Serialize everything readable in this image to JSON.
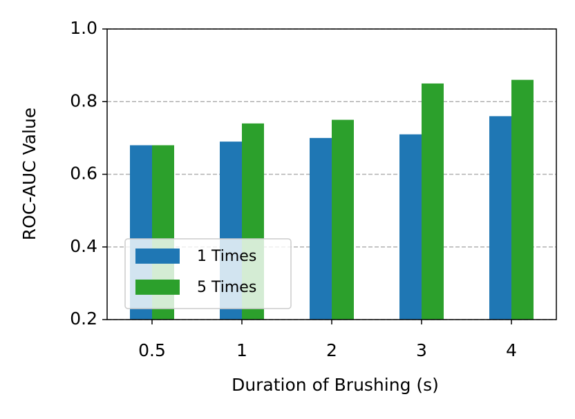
{
  "chart_data": {
    "type": "bar",
    "xlabel": "Duration of Brushing (s)",
    "ylabel": "ROC-AUC Value",
    "categories": [
      "0.5",
      "1",
      "2",
      "3",
      "4"
    ],
    "series": [
      {
        "name": "1 Times",
        "color": "#1f77b4",
        "values": [
          0.68,
          0.69,
          0.7,
          0.71,
          0.76
        ]
      },
      {
        "name": "5 Times",
        "color": "#2ca02c",
        "values": [
          0.68,
          0.74,
          0.75,
          0.85,
          0.86
        ]
      }
    ],
    "ylim": [
      0.2,
      1.0
    ],
    "yticks": [
      0.2,
      0.4,
      0.6,
      0.8,
      {
        "value": 1.0,
        "label": "1.0"
      }
    ],
    "grid": true,
    "legend": "lower left"
  }
}
